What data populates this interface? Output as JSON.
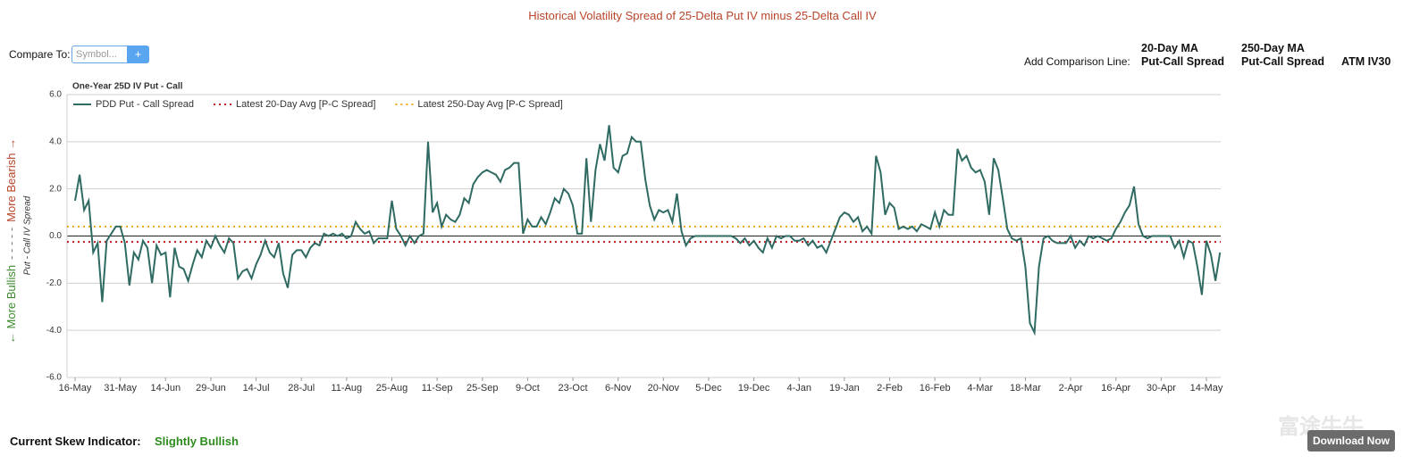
{
  "header": {
    "title": "Historical Volatility Spread of 25-Delta Put IV minus 25-Delta Call IV"
  },
  "compare": {
    "label": "Compare To:",
    "placeholder": "Symbol...",
    "button": "+"
  },
  "comparison_lines": {
    "label": "Add Comparison Line:",
    "options": [
      [
        "20-Day MA",
        "Put-Call Spread"
      ],
      [
        "250-Day MA",
        "Put-Call Spread"
      ],
      [
        "ATM IV30"
      ]
    ]
  },
  "chart_data": {
    "type": "line",
    "title": "One-Year 25D IV Put - Call",
    "ylabel": "Put - Call IV Spread",
    "sentiment_label": [
      "← More Bullish",
      "- - - - -",
      "More Bearish →"
    ],
    "categories": [
      "16-May",
      null,
      null,
      null,
      null,
      null,
      null,
      null,
      null,
      null,
      "31-May",
      null,
      null,
      null,
      null,
      null,
      null,
      null,
      null,
      null,
      "14-Jun",
      null,
      null,
      null,
      null,
      null,
      null,
      null,
      null,
      null,
      "29-Jun",
      null,
      null,
      null,
      null,
      null,
      null,
      null,
      null,
      null,
      "14-Jul",
      null,
      null,
      null,
      null,
      null,
      null,
      null,
      null,
      null,
      "28-Jul",
      null,
      null,
      null,
      null,
      null,
      null,
      null,
      null,
      null,
      "11-Aug",
      null,
      null,
      null,
      null,
      null,
      null,
      null,
      null,
      null,
      "25-Aug",
      null,
      null,
      null,
      null,
      null,
      null,
      null,
      null,
      null,
      "11-Sep",
      null,
      null,
      null,
      null,
      null,
      null,
      null,
      null,
      null,
      "25-Sep",
      null,
      null,
      null,
      null,
      null,
      null,
      null,
      null,
      null,
      "9-Oct",
      null,
      null,
      null,
      null,
      null,
      null,
      null,
      null,
      null,
      "23-Oct",
      null,
      null,
      null,
      null,
      null,
      null,
      null,
      null,
      null,
      "6-Nov",
      null,
      null,
      null,
      null,
      null,
      null,
      null,
      null,
      null,
      "20-Nov",
      null,
      null,
      null,
      null,
      null,
      null,
      null,
      null,
      null,
      "5-Dec",
      null,
      null,
      null,
      null,
      null,
      null,
      null,
      null,
      null,
      "19-Dec",
      null,
      null,
      null,
      null,
      null,
      null,
      null,
      null,
      null,
      "4-Jan",
      null,
      null,
      null,
      null,
      null,
      null,
      null,
      null,
      null,
      "19-Jan",
      null,
      null,
      null,
      null,
      null,
      null,
      null,
      null,
      null,
      "2-Feb",
      null,
      null,
      null,
      null,
      null,
      null,
      null,
      null,
      null,
      "16-Feb",
      null,
      null,
      null,
      null,
      null,
      null,
      null,
      null,
      null,
      "4-Mar",
      null,
      null,
      null,
      null,
      null,
      null,
      null,
      null,
      null,
      "18-Mar",
      null,
      null,
      null,
      null,
      null,
      null,
      null,
      null,
      null,
      "2-Apr",
      null,
      null,
      null,
      null,
      null,
      null,
      null,
      null,
      null,
      "16-Apr",
      null,
      null,
      null,
      null,
      null,
      null,
      null,
      null,
      null,
      "30-Apr",
      null,
      null,
      null,
      null,
      null,
      null,
      null,
      null,
      null,
      "14-May",
      null,
      null,
      null
    ],
    "series": [
      {
        "name": "PDD Put - Call Spread",
        "color": "#2f6b63",
        "values": [
          1.5,
          2.6,
          1.1,
          1.5,
          -0.7,
          -0.3,
          -2.8,
          -0.2,
          0.1,
          0.4,
          0.4,
          -0.3,
          -2.1,
          -0.7,
          -1.0,
          -0.2,
          -0.5,
          -2.0,
          -0.4,
          -0.8,
          -0.7,
          -2.6,
          -0.5,
          -1.3,
          -1.4,
          -1.9,
          -1.2,
          -0.6,
          -0.9,
          -0.2,
          -0.5,
          0.0,
          -0.4,
          -0.7,
          -0.1,
          -0.3,
          -1.8,
          -1.5,
          -1.4,
          -1.8,
          -1.2,
          -0.8,
          -0.2,
          -0.7,
          -0.9,
          -0.3,
          -1.6,
          -2.2,
          -0.8,
          -0.6,
          -0.6,
          -0.9,
          -0.5,
          -0.3,
          -0.4,
          0.1,
          0.0,
          0.1,
          0.0,
          0.1,
          -0.1,
          0.0,
          0.6,
          0.3,
          0.1,
          0.2,
          -0.3,
          -0.1,
          -0.1,
          -0.1,
          1.5,
          0.3,
          0.0,
          -0.4,
          0.0,
          -0.3,
          0.0,
          0.1,
          4.0,
          1.0,
          1.4,
          0.4,
          0.9,
          0.7,
          0.6,
          0.9,
          1.6,
          1.4,
          2.2,
          2.5,
          2.7,
          2.8,
          2.7,
          2.6,
          2.3,
          2.8,
          2.9,
          3.1,
          3.1,
          0.1,
          0.7,
          0.4,
          0.4,
          0.8,
          0.5,
          1.0,
          1.6,
          1.4,
          2.0,
          1.8,
          1.3,
          0.1,
          0.1,
          3.3,
          0.6,
          2.8,
          3.9,
          3.2,
          4.7,
          2.9,
          2.7,
          3.4,
          3.5,
          4.2,
          4.0,
          4.0,
          2.4,
          1.3,
          0.7,
          1.1,
          1.0,
          1.1,
          0.6,
          1.8,
          0.2,
          -0.4,
          -0.1,
          0.0,
          0.0,
          0.0,
          0.0,
          0.0,
          0.0,
          0.0,
          0.0,
          0.0,
          -0.1,
          -0.3,
          -0.1,
          -0.4,
          -0.2,
          -0.5,
          -0.7,
          -0.1,
          -0.5,
          0.0,
          -0.1,
          0.0,
          0.0,
          -0.2,
          -0.2,
          -0.1,
          -0.4,
          -0.2,
          -0.5,
          -0.4,
          -0.7,
          -0.2,
          0.3,
          0.8,
          1.0,
          0.9,
          0.6,
          0.8,
          0.2,
          0.4,
          0.1,
          3.4,
          2.7,
          0.9,
          1.4,
          1.2,
          0.3,
          0.4,
          0.3,
          0.4,
          0.2,
          0.5,
          0.4,
          0.3,
          1.0,
          0.4,
          1.1,
          0.9,
          0.9,
          3.7,
          3.2,
          3.4,
          2.9,
          2.7,
          2.8,
          2.3,
          0.9,
          3.3,
          2.8,
          1.6,
          0.3,
          -0.1,
          -0.2,
          -0.1,
          -1.3,
          -3.7,
          -4.1,
          -1.3,
          -0.1,
          0.0,
          -0.2,
          -0.3,
          -0.3,
          -0.3,
          0.0,
          -0.5,
          -0.2,
          -0.4,
          0.0,
          -0.1,
          0.0,
          -0.1,
          -0.2,
          -0.1,
          0.3,
          0.6,
          1.0,
          1.3,
          2.1,
          0.5,
          0.0,
          -0.1,
          0.0,
          0.0,
          0.0,
          0.0,
          0.0,
          -0.5,
          -0.2,
          -0.9,
          -0.2,
          -0.3,
          -1.3,
          -2.5,
          -0.2,
          -0.8,
          -1.9,
          -0.7
        ]
      }
    ],
    "reference_lines": [
      {
        "name": "Latest 20-Day Avg [P-C Spread]",
        "color": "#c0141c",
        "value": -0.25
      },
      {
        "name": "Latest 250-Day Avg [P-C Spread]",
        "color": "#f0a81c",
        "value": 0.4
      }
    ],
    "ylim": [
      -6,
      6
    ],
    "yticks": [
      {
        "value": -6,
        "label": "-6.0"
      },
      {
        "value": -4,
        "label": "-4.0"
      },
      {
        "value": -2,
        "label": "-2.0"
      },
      {
        "value": 0,
        "label": "0.0"
      },
      {
        "value": 2,
        "label": "2.0"
      },
      {
        "value": 4,
        "label": "4.0"
      },
      {
        "value": 6,
        "label": "6.0"
      }
    ],
    "grid": true,
    "legend": "top-left"
  },
  "footer": {
    "label": "Current Skew Indicator:",
    "value": "Slightly Bullish"
  },
  "watermark": {
    "text": "富途牛牛",
    "button": "Download Now"
  }
}
